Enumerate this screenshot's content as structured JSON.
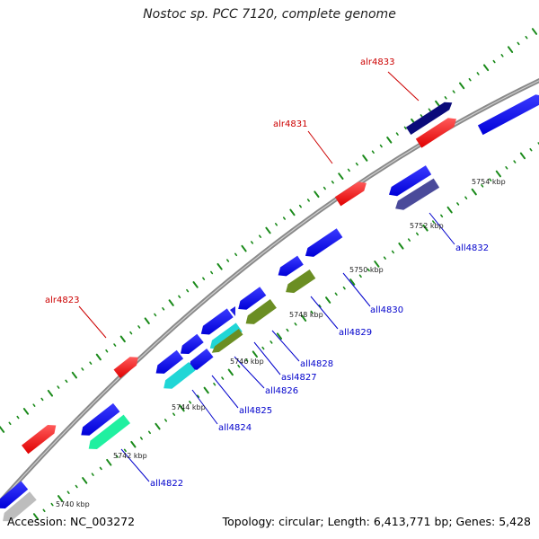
{
  "title": "Nostoc sp. PCC 7120, complete genome",
  "footer": {
    "accession": "Accession: NC_003272",
    "summary": "Topology: circular; Length: 6,413,771 bp; Genes: 5,428"
  },
  "colors": {
    "backbone": "#8a8a8a",
    "tick_dot": "#1a8a1a",
    "label_forward": "#cc0000",
    "label_reverse": "#0000cc"
  },
  "kbp_labels": [
    "5740 kbp",
    "5742 kbp",
    "5744 kbp",
    "5746 kbp",
    "5748 kbp",
    "5750 kbp",
    "5752 kbp",
    "5754 kbp"
  ],
  "genes": [
    {
      "id": "alr4833",
      "strand": "forward",
      "labeled": true
    },
    {
      "id": "alr4831",
      "strand": "forward",
      "labeled": true
    },
    {
      "id": "alr4823",
      "strand": "forward",
      "labeled": true
    },
    {
      "id": "all4832",
      "strand": "reverse",
      "labeled": true
    },
    {
      "id": "all4830",
      "strand": "reverse",
      "labeled": true
    },
    {
      "id": "all4829",
      "strand": "reverse",
      "labeled": true
    },
    {
      "id": "all4828",
      "strand": "reverse",
      "labeled": true
    },
    {
      "id": "asl4827",
      "strand": "reverse",
      "labeled": true
    },
    {
      "id": "all4826",
      "strand": "reverse",
      "labeled": true
    },
    {
      "id": "all4825",
      "strand": "reverse",
      "labeled": true
    },
    {
      "id": "all4824",
      "strand": "reverse",
      "labeled": true
    },
    {
      "id": "all4822",
      "strand": "reverse",
      "labeled": true
    }
  ]
}
